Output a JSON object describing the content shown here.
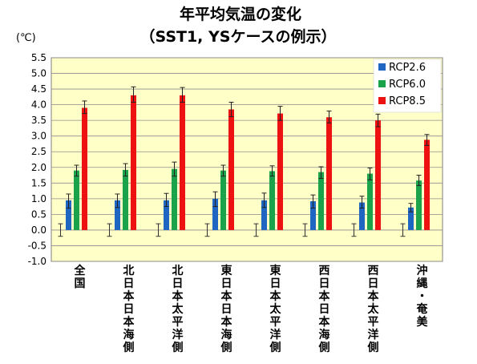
{
  "chart_data": {
    "type": "bar",
    "title": "年平均気温の変化",
    "subtitle": "（SST1, YSケースの例示）",
    "ylabel": "(℃)",
    "xlabel": "",
    "ylim": [
      -1.0,
      5.5
    ],
    "ytick_step": 0.5,
    "ytick_labels": [
      "5.5",
      "5.0",
      "4.5",
      "4.0",
      "3.5",
      "3.0",
      "2.5",
      "2.0",
      "1.5",
      "1.0",
      "0.5",
      "0.0",
      "-0.5",
      "-1.0"
    ],
    "grid": true,
    "legend_position": "top-right",
    "categories": [
      "全国",
      "北日本日本海側",
      "北日本太平洋側",
      "東日本日本海側",
      "東日本太平洋側",
      "西日本日本海側",
      "西日本太平洋側",
      "沖縄・奄美"
    ],
    "baseline_error": {
      "mean": 0.0,
      "low": -0.2,
      "high": 0.2
    },
    "series": [
      {
        "name": "RCP2.6",
        "color": "#1f66c2",
        "values": [
          0.95,
          0.95,
          0.95,
          1.0,
          0.95,
          0.92,
          0.88,
          0.72
        ],
        "err_low": [
          0.7,
          0.72,
          0.75,
          0.75,
          0.72,
          0.7,
          0.7,
          0.58
        ],
        "err_high": [
          1.15,
          1.15,
          1.17,
          1.22,
          1.18,
          1.12,
          1.08,
          0.85
        ]
      },
      {
        "name": "RCP6.0",
        "color": "#1aa34a",
        "values": [
          1.9,
          1.92,
          1.95,
          1.9,
          1.88,
          1.85,
          1.8,
          1.58
        ],
        "err_low": [
          1.72,
          1.72,
          1.72,
          1.72,
          1.72,
          1.65,
          1.6,
          1.42
        ],
        "err_high": [
          2.07,
          2.12,
          2.17,
          2.07,
          2.05,
          2.02,
          1.98,
          1.75
        ]
      },
      {
        "name": "RCP8.5",
        "color": "#ee1111",
        "values": [
          3.9,
          4.3,
          4.3,
          3.85,
          3.72,
          3.6,
          3.5,
          2.88
        ],
        "err_low": [
          3.72,
          4.08,
          4.08,
          3.62,
          3.5,
          3.42,
          3.3,
          2.7
        ],
        "err_high": [
          4.12,
          4.57,
          4.55,
          4.08,
          3.95,
          3.8,
          3.7,
          3.05
        ]
      }
    ]
  }
}
